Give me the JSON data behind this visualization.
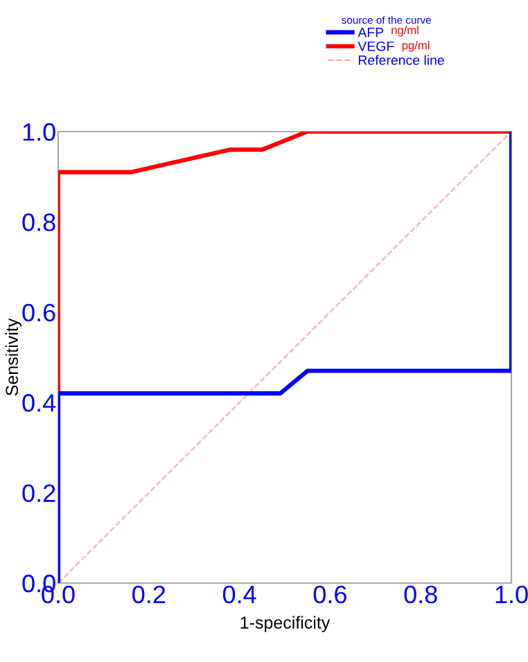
{
  "chart_data": {
    "type": "line",
    "xlabel": "1-specificity",
    "ylabel": "Sensitivity",
    "legend_title": "source of the curve",
    "legend": "top right",
    "series": [
      {
        "name": "AFP",
        "color": "#0000ff",
        "x": [
          0,
          0,
          0.49,
          0.55,
          1,
          1
        ],
        "values": [
          0,
          0.42,
          0.42,
          0.47,
          0.47,
          1
        ]
      },
      {
        "name": "VEGF",
        "color": "#ff0000",
        "x": [
          0,
          0,
          0.16,
          0.38,
          0.45,
          0.55,
          1
        ],
        "values": [
          0,
          0.91,
          0.91,
          0.96,
          0.96,
          1,
          1
        ]
      },
      {
        "name": "Reference line",
        "color": "#ffb0b0",
        "line_style": "dashed",
        "x": [
          0,
          1
        ],
        "values": [
          0,
          1
        ]
      }
    ],
    "annotations": [
      "ng/ml",
      "pg/ml"
    ],
    "xlim": [
      0,
      1
    ],
    "ylim": [
      0,
      1
    ],
    "xticks": [
      {
        "value": 0,
        "label": "0.0"
      },
      0.2,
      0.4,
      0.6,
      0.8,
      {
        "value": 1,
        "label": "1.0"
      }
    ],
    "yticks": [
      {
        "value": 0,
        "label": "0.0"
      },
      0.2,
      0.4,
      0.6,
      0.8,
      {
        "value": 1,
        "label": "1.0"
      }
    ],
    "grid": false
  }
}
